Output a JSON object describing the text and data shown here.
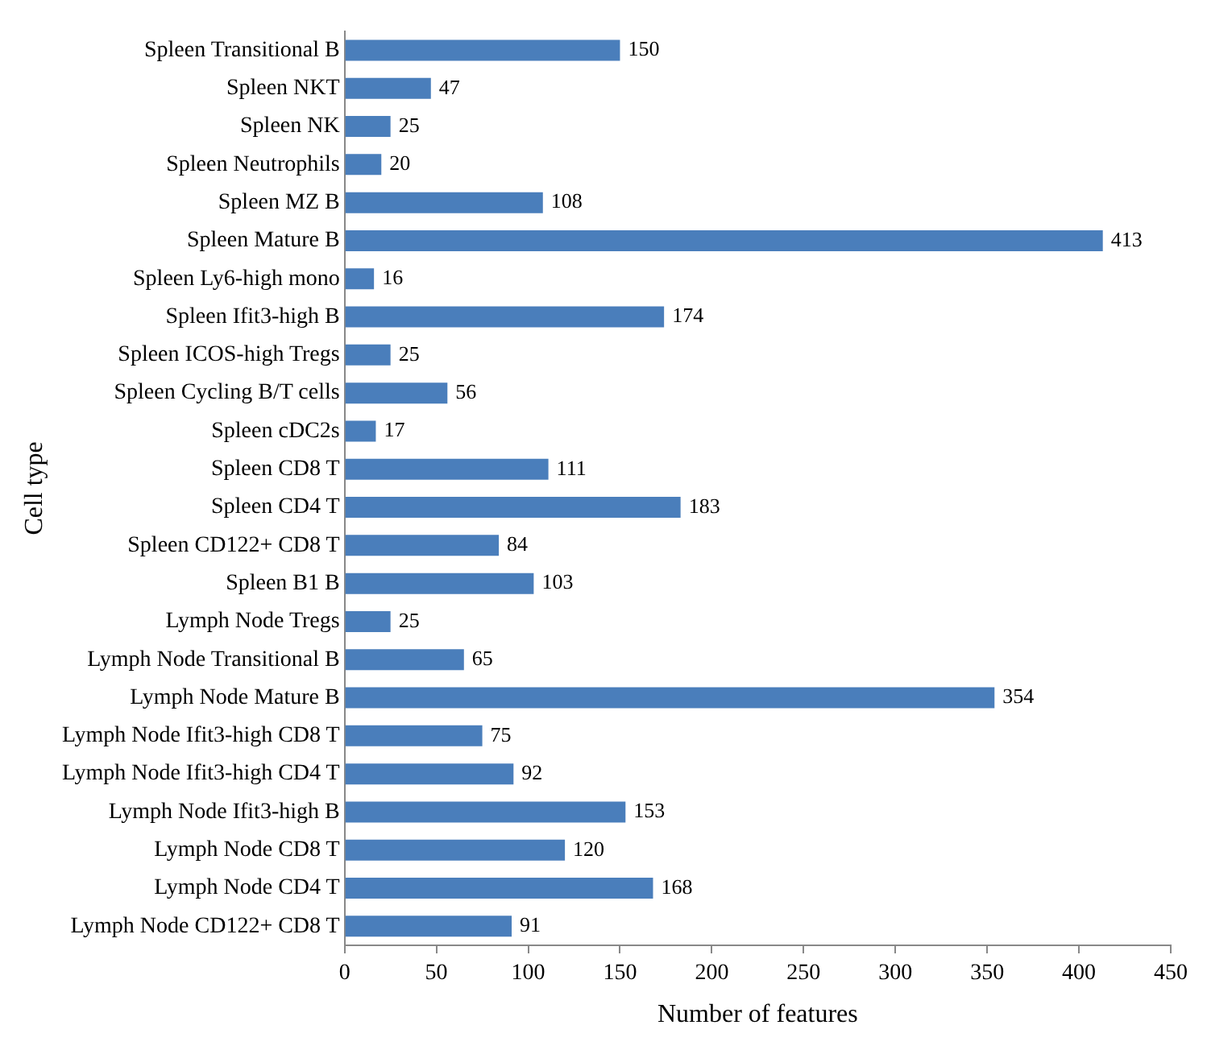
{
  "chart_data": {
    "type": "bar",
    "orientation": "horizontal",
    "xlabel": "Number of features",
    "ylabel": "Cell type",
    "categories": [
      "Spleen Transitional B",
      "Spleen NKT",
      "Spleen NK",
      "Spleen Neutrophils",
      "Spleen MZ B",
      "Spleen Mature B",
      "Spleen Ly6-high mono",
      "Spleen Ifit3-high B",
      "Spleen ICOS-high Tregs",
      "Spleen Cycling B/T cells",
      "Spleen cDC2s",
      "Spleen CD8 T",
      "Spleen CD4 T",
      "Spleen CD122+ CD8 T",
      "Spleen B1 B",
      "Lymph Node Tregs",
      "Lymph Node Transitional B",
      "Lymph Node Mature B",
      "Lymph Node Ifit3-high CD8 T",
      "Lymph Node Ifit3-high CD4 T",
      "Lymph Node Ifit3-high B",
      "Lymph Node CD8 T",
      "Lymph Node CD4 T",
      "Lymph Node CD122+ CD8 T"
    ],
    "values": [
      150,
      47,
      25,
      20,
      108,
      413,
      16,
      174,
      25,
      56,
      17,
      111,
      183,
      84,
      103,
      25,
      65,
      354,
      75,
      92,
      153,
      120,
      168,
      91
    ],
    "color": "#4a7ebb",
    "xlim": [
      0,
      450
    ],
    "xticks": [
      0,
      50,
      100,
      150,
      200,
      250,
      300,
      350,
      400,
      450
    ],
    "grid": false,
    "legend": false,
    "data_labels": true
  }
}
